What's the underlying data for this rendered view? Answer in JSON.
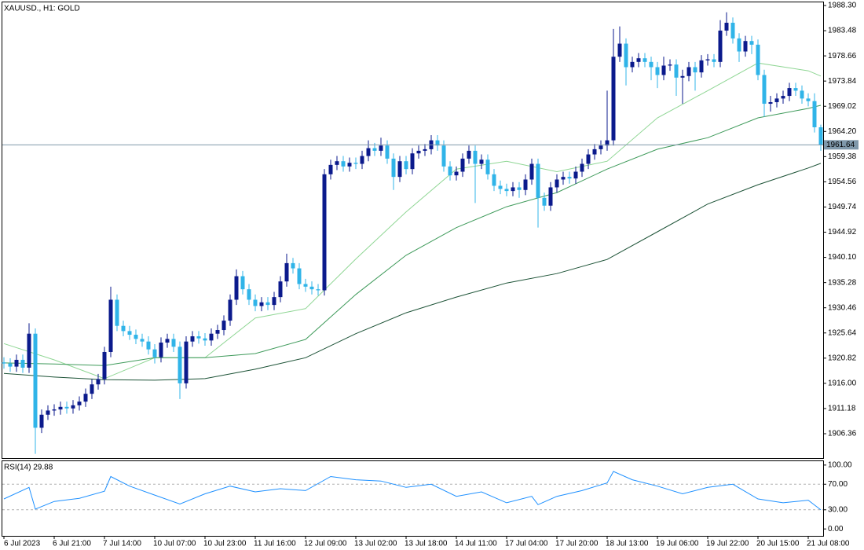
{
  "chart_data": [
    {
      "type": "candlestick",
      "title": "XAUUSD., H1:  GOLD",
      "open": [
        1920.0,
        1919.8,
        1919.2,
        1920.5,
        1919.0,
        1925.5,
        1907.5,
        1910.0,
        1910.8,
        1911.0,
        1911.5,
        1911.2,
        1911.8,
        1912.5,
        1914.0,
        1915.8,
        1916.8,
        1922.0,
        1932.0,
        1927.0,
        1926.0,
        1925.3,
        1924.5,
        1924.0,
        1922.5,
        1921.0,
        1923.8,
        1924.5,
        1923.0,
        1916.0,
        1924.0,
        1925.0,
        1924.6,
        1924.2,
        1925.5,
        1926.2,
        1928.0,
        1932.0,
        1936.5,
        1934.0,
        1932.0,
        1930.8,
        1931.5,
        1931.0,
        1932.5,
        1935.5,
        1939.0,
        1938.0,
        1935.0,
        1934.5,
        1934.0,
        1933.8,
        1956.0,
        1957.8,
        1958.5,
        1957.5,
        1958.2,
        1958.0,
        1959.5,
        1961.0,
        1960.5,
        1961.5,
        1959.0,
        1955.5,
        1958.5,
        1957.0,
        1960.0,
        1960.5,
        1960.8,
        1962.5,
        1961.5,
        1957.5,
        1955.8,
        1956.5,
        1959.0,
        1960.5,
        1958.0,
        1958.8,
        1956.0,
        1953.8,
        1953.2,
        1952.8,
        1953.5,
        1953.0,
        1955.0,
        1958.0,
        1951.5,
        1950.0,
        1953.5,
        1955.0,
        1955.5,
        1955.2,
        1956.5,
        1958.0,
        1959.8,
        1960.8,
        1961.5,
        1962.5,
        1978.5,
        1981.0,
        1976.5,
        1977.5,
        1978.2,
        1977.5,
        1976.5,
        1975.0,
        1976.8,
        1977.0,
        1974.5,
        1974.8,
        1976.5,
        1975.5,
        1977.8,
        1978.0,
        1977.5,
        1983.5,
        1985.0,
        1982.0,
        1979.5,
        1981.5,
        1980.8,
        1975.0,
        1969.5,
        1969.8,
        1970.5,
        1971.0,
        1972.5,
        1972.0,
        1970.5,
        1970.0,
        1965.0
      ],
      "high": [
        1921.0,
        1920.8,
        1921.5,
        1921.5,
        1927.5,
        1926.5,
        1911.0,
        1911.8,
        1912.0,
        1912.5,
        1912.5,
        1912.8,
        1913.5,
        1915.0,
        1916.8,
        1917.8,
        1923.0,
        1934.5,
        1933.0,
        1928.0,
        1927.0,
        1926.3,
        1925.5,
        1925.0,
        1923.5,
        1924.8,
        1925.5,
        1925.5,
        1924.0,
        1925.0,
        1926.0,
        1926.0,
        1925.6,
        1926.5,
        1927.2,
        1929.0,
        1933.0,
        1937.8,
        1937.5,
        1935.0,
        1933.0,
        1932.5,
        1932.5,
        1933.5,
        1936.5,
        1940.8,
        1940.0,
        1939.0,
        1936.0,
        1935.5,
        1935.0,
        1957.0,
        1958.8,
        1959.5,
        1959.5,
        1959.2,
        1959.2,
        1960.5,
        1962.5,
        1962.0,
        1963.0,
        1962.5,
        1960.0,
        1959.5,
        1959.5,
        1961.0,
        1961.5,
        1961.8,
        1963.5,
        1963.5,
        1962.5,
        1958.5,
        1957.5,
        1960.0,
        1961.5,
        1961.5,
        1959.8,
        1959.8,
        1957.0,
        1954.8,
        1954.2,
        1954.5,
        1954.5,
        1956.0,
        1959.0,
        1959.0,
        1952.5,
        1954.5,
        1956.0,
        1956.5,
        1956.5,
        1957.5,
        1959.0,
        1960.8,
        1961.8,
        1962.5,
        1972.0,
        1983.8,
        1984.3,
        1982.0,
        1978.5,
        1979.2,
        1979.2,
        1978.5,
        1977.5,
        1978.5,
        1978.0,
        1978.0,
        1976.0,
        1977.5,
        1977.5,
        1978.8,
        1979.0,
        1979.0,
        1985.5,
        1987.0,
        1986.0,
        1983.0,
        1982.5,
        1982.5,
        1981.8,
        1976.0,
        1971.0,
        1971.5,
        1972.0,
        1973.5,
        1973.5,
        1973.0,
        1971.5,
        1971.5,
        1965.5
      ],
      "low": [
        1918.8,
        1918.2,
        1918.2,
        1918.0,
        1918.0,
        1902.5,
        1906.5,
        1909.0,
        1909.8,
        1910.0,
        1910.2,
        1910.2,
        1910.8,
        1911.5,
        1913.0,
        1914.8,
        1915.8,
        1921.0,
        1926.0,
        1925.0,
        1924.3,
        1923.5,
        1923.0,
        1921.5,
        1919.8,
        1920.0,
        1922.8,
        1922.0,
        1913.0,
        1915.0,
        1923.0,
        1923.6,
        1923.2,
        1923.2,
        1924.5,
        1925.2,
        1927.0,
        1931.0,
        1933.0,
        1931.0,
        1929.8,
        1929.8,
        1930.0,
        1930.0,
        1931.5,
        1934.5,
        1937.0,
        1934.0,
        1933.5,
        1933.0,
        1932.8,
        1932.8,
        1955.0,
        1956.8,
        1956.5,
        1956.5,
        1957.0,
        1957.0,
        1958.5,
        1959.5,
        1959.5,
        1958.0,
        1953.0,
        1954.5,
        1956.0,
        1956.0,
        1959.0,
        1959.5,
        1959.8,
        1960.5,
        1956.5,
        1954.8,
        1954.8,
        1955.5,
        1958.0,
        1950.5,
        1957.0,
        1955.0,
        1952.8,
        1952.2,
        1951.8,
        1951.8,
        1951.5,
        1952.0,
        1954.0,
        1945.8,
        1949.0,
        1949.0,
        1952.5,
        1954.0,
        1954.2,
        1954.2,
        1955.5,
        1957.0,
        1958.8,
        1959.8,
        1960.5,
        1961.5,
        1977.5,
        1973.0,
        1975.5,
        1976.5,
        1976.5,
        1974.0,
        1972.5,
        1974.0,
        1975.8,
        1971.0,
        1969.5,
        1973.8,
        1972.0,
        1974.5,
        1976.8,
        1976.5,
        1976.5,
        1982.5,
        1981.0,
        1977.5,
        1978.5,
        1979.0,
        1974.0,
        1967.0,
        1968.0,
        1968.8,
        1969.5,
        1970.0,
        1971.0,
        1969.5,
        1969.0,
        1964.0,
        1960.5
      ],
      "close": [
        1919.8,
        1919.2,
        1920.5,
        1919.0,
        1925.5,
        1907.5,
        1910.0,
        1910.8,
        1911.0,
        1911.5,
        1911.2,
        1911.8,
        1912.5,
        1914.0,
        1915.8,
        1916.8,
        1922.0,
        1932.0,
        1927.0,
        1926.0,
        1925.3,
        1924.5,
        1924.0,
        1922.5,
        1921.0,
        1923.8,
        1924.5,
        1923.0,
        1916.0,
        1924.0,
        1925.0,
        1924.6,
        1924.2,
        1925.5,
        1926.2,
        1928.0,
        1932.0,
        1936.5,
        1934.0,
        1932.0,
        1930.8,
        1931.5,
        1931.0,
        1932.5,
        1935.5,
        1939.0,
        1938.0,
        1935.0,
        1934.5,
        1934.0,
        1933.8,
        1956.0,
        1957.8,
        1958.5,
        1957.5,
        1958.2,
        1958.0,
        1959.5,
        1961.0,
        1960.5,
        1961.5,
        1959.0,
        1955.5,
        1958.5,
        1957.0,
        1960.0,
        1960.5,
        1960.8,
        1962.5,
        1961.5,
        1957.5,
        1955.8,
        1956.5,
        1959.0,
        1960.5,
        1958.0,
        1958.8,
        1956.0,
        1953.8,
        1953.2,
        1952.8,
        1953.5,
        1953.0,
        1955.0,
        1958.0,
        1951.5,
        1950.0,
        1953.5,
        1955.0,
        1955.5,
        1955.2,
        1956.5,
        1958.0,
        1959.8,
        1960.8,
        1961.5,
        1962.5,
        1978.5,
        1981.0,
        1976.5,
        1977.5,
        1978.2,
        1977.5,
        1976.5,
        1975.0,
        1976.8,
        1977.0,
        1974.5,
        1974.8,
        1976.5,
        1975.5,
        1977.8,
        1978.0,
        1977.5,
        1983.5,
        1985.0,
        1982.0,
        1979.5,
        1981.5,
        1980.8,
        1975.0,
        1969.5,
        1969.8,
        1970.5,
        1971.0,
        1972.5,
        1972.0,
        1970.5,
        1970.0,
        1965.0,
        1961.64
      ],
      "up_color": "#0b1a8c",
      "down_color": "#30b4e8",
      "xlim": [
        -0.25,
        130.375
      ],
      "xticks": [
        {
          "value": 0,
          "label": "6 Jul 2023"
        },
        {
          "value": 8,
          "label": "6 Jul 21:00"
        },
        {
          "value": 16,
          "label": "7 Jul 14:00"
        },
        {
          "value": 24,
          "label": "10 Jul 07:00"
        },
        {
          "value": 32,
          "label": "10 Jul 23:00"
        },
        {
          "value": 40,
          "label": "11 Jul 16:00"
        },
        {
          "value": 48,
          "label": "12 Jul 09:00"
        },
        {
          "value": 56,
          "label": "13 Jul 02:00"
        },
        {
          "value": 64,
          "label": "13 Jul 18:00"
        },
        {
          "value": 72,
          "label": "14 Jul 11:00"
        },
        {
          "value": 80,
          "label": "17 Jul 04:00"
        },
        {
          "value": 88,
          "label": "17 Jul 20:00"
        },
        {
          "value": 96,
          "label": "18 Jul 13:00"
        },
        {
          "value": 104,
          "label": "19 Jul 06:00"
        },
        {
          "value": 112,
          "label": "19 Jul 22:00"
        },
        {
          "value": 120,
          "label": "20 Jul 15:00"
        },
        {
          "value": 128,
          "label": "21 Jul 08:00"
        }
      ],
      "ylim": [
        1901.7,
        1988.9
      ],
      "yticks": [
        1906.36,
        1911.18,
        {
          "value": 1916,
          "label": "1916.00"
        },
        1920.82,
        1925.64,
        1930.46,
        1935.28,
        {
          "value": 1940.1,
          "label": "1940.10"
        },
        1944.92,
        1949.74,
        1954.56,
        1959.38,
        {
          "value": 1964.2,
          "label": "1964.20"
        },
        1969.02,
        1973.84,
        1978.66,
        1983.48,
        {
          "value": 1988.3,
          "label": "1988.30"
        }
      ],
      "current_price": 1961.64,
      "current_color": "#7f98aa",
      "lines_x": [
        0,
        8,
        16,
        24,
        32,
        40,
        48,
        56,
        64,
        72,
        80,
        88,
        96,
        104,
        112,
        120,
        128,
        130
      ],
      "lines": [
        {
          "color": "#8fd694",
          "values": [
            1923.6,
            1920.5,
            1916.9,
            1920.9,
            1920.9,
            1928.5,
            1930.3,
            1939.8,
            1948.8,
            1957.0,
            1958.5,
            1956.5,
            1958.5,
            1966.8,
            1972.0,
            1977.3,
            1975.8,
            1974.8
          ]
        },
        {
          "color": "#3e9a5a",
          "values": [
            1919.9,
            1919.7,
            1919.4,
            1920.9,
            1920.9,
            1921.7,
            1924.4,
            1933.0,
            1940.5,
            1945.8,
            1949.8,
            1952.5,
            1957.0,
            1960.8,
            1963.0,
            1966.8,
            1968.6,
            1969.2
          ]
        },
        {
          "color": "#1c5236",
          "values": [
            1917.9,
            1917.2,
            1916.7,
            1916.6,
            1916.9,
            1918.7,
            1920.9,
            1925.5,
            1929.5,
            1932.5,
            1935.2,
            1937.0,
            1939.7,
            1945.0,
            1950.3,
            1954.0,
            1957.2,
            1958.1
          ]
        }
      ]
    },
    {
      "type": "line",
      "title": "RSI(14) 29.88",
      "x": [
        0,
        4,
        5,
        8,
        12,
        16,
        17,
        20,
        24,
        28,
        32,
        36,
        40,
        44,
        48,
        52,
        56,
        60,
        64,
        68,
        72,
        76,
        80,
        84,
        85,
        88,
        92,
        96,
        97,
        100,
        104,
        108,
        112,
        116,
        120,
        124,
        128,
        130
      ],
      "values": [
        47,
        65,
        31,
        43,
        48,
        59,
        82,
        67,
        53,
        39,
        55,
        67,
        58,
        63,
        60,
        82,
        77,
        75,
        65,
        70,
        51,
        58,
        41,
        51,
        38,
        51,
        60,
        72,
        90,
        77,
        67,
        55,
        65,
        70,
        47,
        41,
        45,
        29.88
      ],
      "color": "#1e90ff",
      "xlim": [
        -0.25,
        130.375
      ],
      "ylim": [
        -9.6,
        106
      ],
      "yticks": [
        {
          "value": 0,
          "label": "0.00"
        },
        {
          "value": 30,
          "label": "30.00"
        },
        {
          "value": 70,
          "label": "70.00"
        },
        {
          "value": 100,
          "label": "100.00"
        }
      ],
      "levels": [
        30,
        70
      ]
    }
  ]
}
